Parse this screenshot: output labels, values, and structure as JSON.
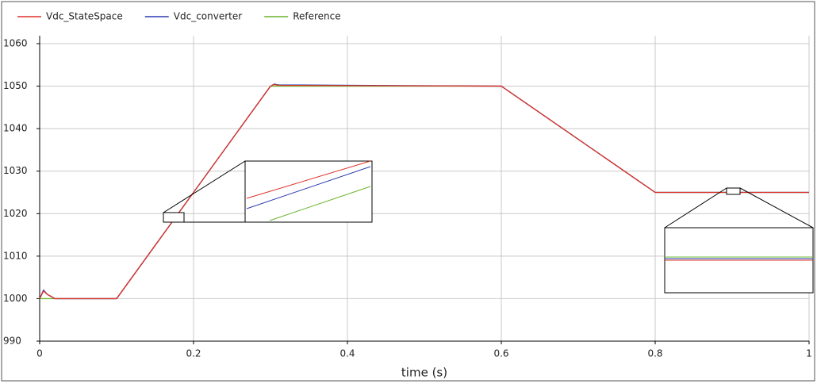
{
  "chart_data": {
    "type": "line",
    "xlabel": "time (s)",
    "xlim": [
      0,
      1
    ],
    "xticks": [
      0,
      0.2,
      0.4,
      0.6,
      0.8,
      1
    ],
    "ylim": [
      990,
      1060
    ],
    "yticks": [
      990,
      1000,
      1010,
      1020,
      1030,
      1040,
      1050,
      1060
    ],
    "grid": true,
    "legend": "top",
    "series": [
      {
        "name": "Vdc_StateSpace",
        "color": "#e0302a",
        "x": [
          0,
          0.005,
          0.01,
          0.02,
          0.1,
          0.3,
          0.305,
          0.31,
          0.6,
          0.8,
          1
        ],
        "values": [
          1000,
          1001.8,
          1001,
          1000,
          1000,
          1050,
          1050.4,
          1050.2,
          1050,
          1025,
          1025
        ]
      },
      {
        "name": "Vdc_converter",
        "color": "#2a3cb0",
        "x": [
          0,
          0.005,
          0.01,
          0.02,
          0.1,
          0.3,
          0.305,
          0.31,
          0.6,
          0.8,
          1
        ],
        "values": [
          1000,
          1002,
          1001,
          1000,
          1000,
          1050,
          1050.5,
          1050.3,
          1050,
          1025,
          1025
        ]
      },
      {
        "name": "Reference",
        "color": "#6ab42c",
        "x": [
          0,
          0.1,
          0.3,
          0.6,
          0.8,
          1
        ],
        "values": [
          1000,
          1000,
          1050,
          1050,
          1025,
          1025
        ]
      }
    ]
  }
}
